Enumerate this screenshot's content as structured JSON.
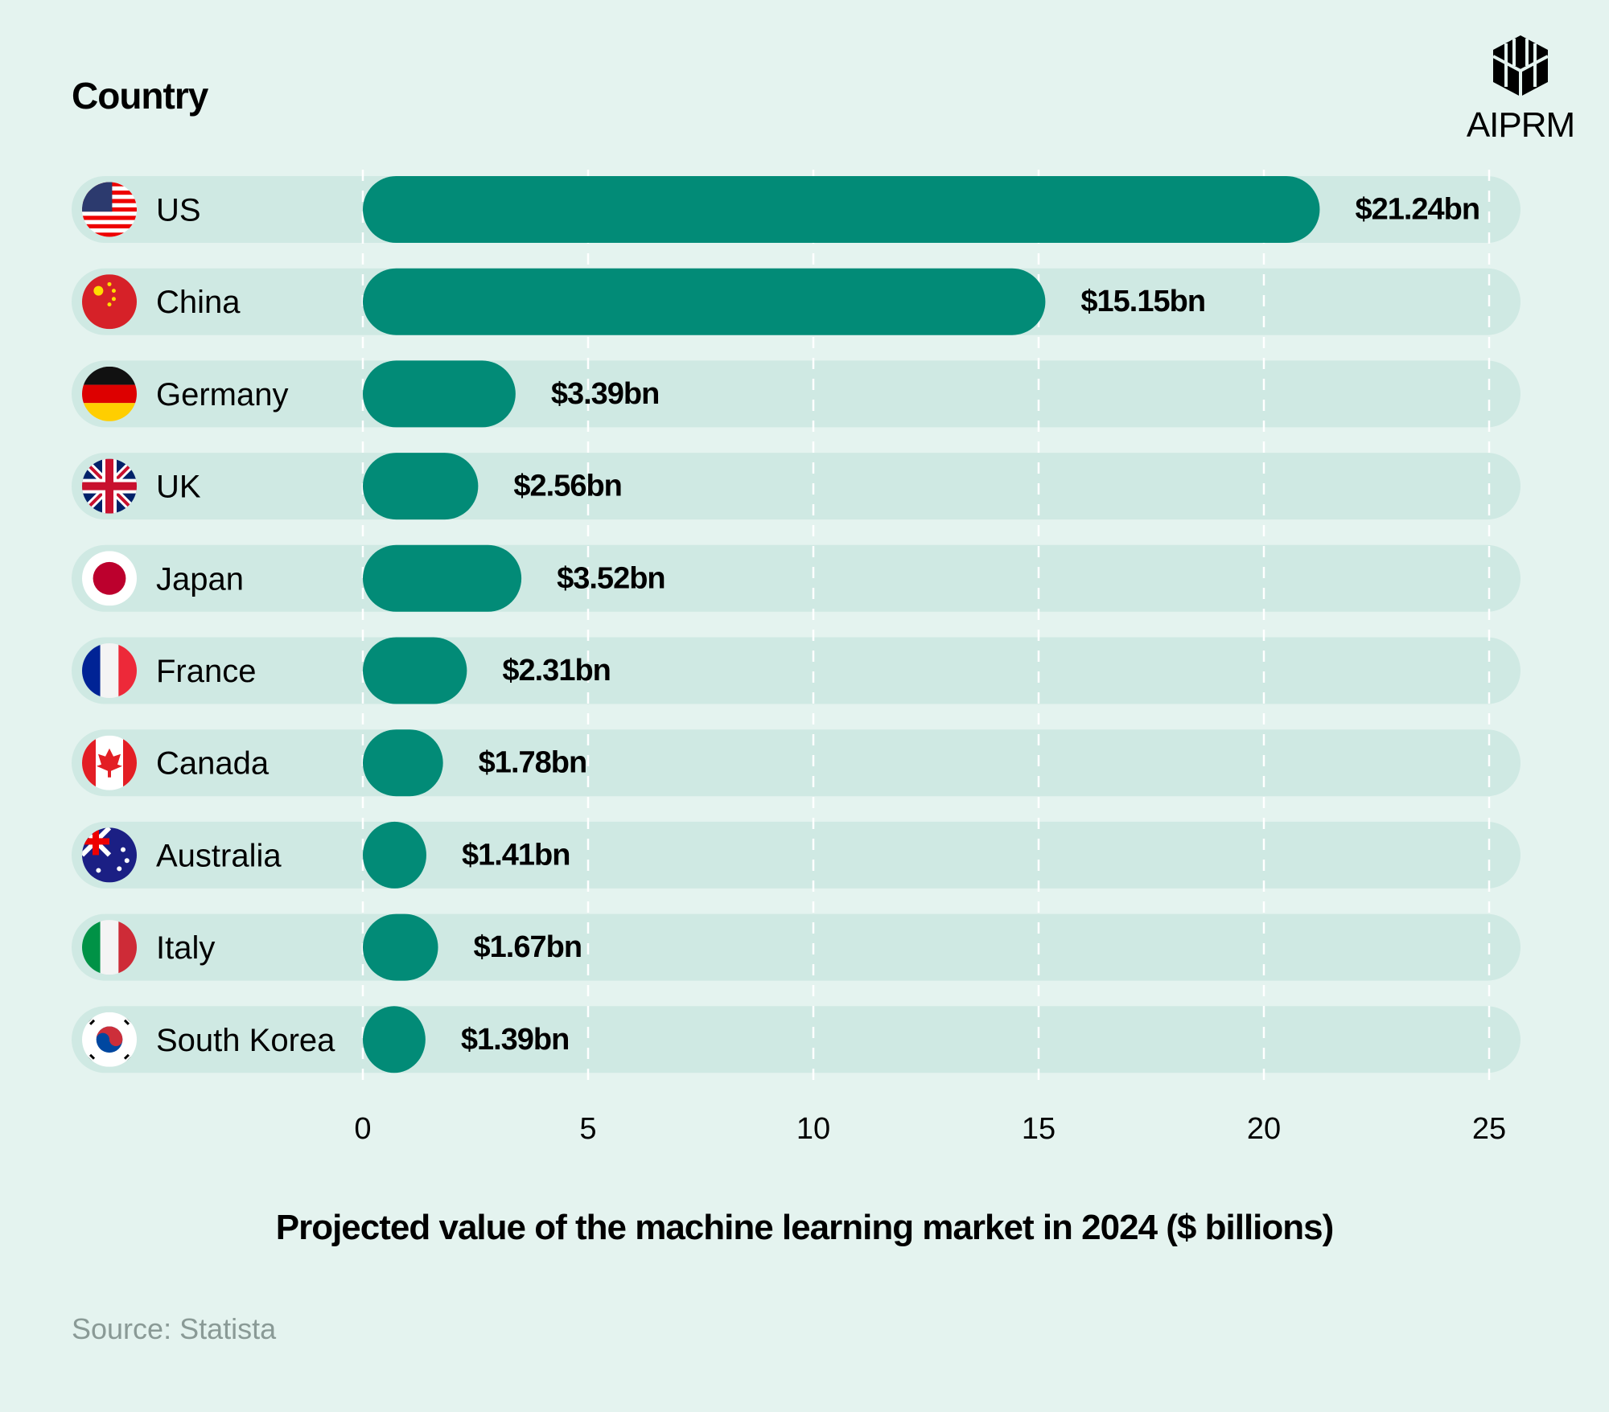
{
  "chart_data": {
    "type": "bar",
    "orientation": "horizontal",
    "legend_title": "Country",
    "categories": [
      "US",
      "China",
      "Germany",
      "UK",
      "Japan",
      "France",
      "Canada",
      "Australia",
      "Italy",
      "South Korea"
    ],
    "flag_icons": [
      "us-flag-icon",
      "china-flag-icon",
      "germany-flag-icon",
      "uk-flag-icon",
      "japan-flag-icon",
      "france-flag-icon",
      "canada-flag-icon",
      "australia-flag-icon",
      "italy-flag-icon",
      "south-korea-flag-icon"
    ],
    "values": [
      21.24,
      15.15,
      3.39,
      2.56,
      3.52,
      2.31,
      1.78,
      1.41,
      1.67,
      1.39
    ],
    "data_labels": [
      "$21.24bn",
      "$15.15bn",
      "$3.39bn",
      "$2.56bn",
      "$3.52bn",
      "$2.31bn",
      "$1.78bn",
      "$1.41bn",
      "$1.67bn",
      "$1.39bn"
    ],
    "xlabel": "Projected value of the machine learning market in 2024 ($ billions)",
    "xlim": [
      0,
      25
    ],
    "xticks": [
      "0",
      "5",
      "10",
      "15",
      "20",
      "25"
    ],
    "grid": true,
    "colors": {
      "bar": "#028b77",
      "track": "#cfe9e3",
      "background": "#e4f3ef",
      "grid": "#ffffff"
    }
  },
  "source": "Source: Statista",
  "logo": {
    "text": "AIPRM"
  }
}
